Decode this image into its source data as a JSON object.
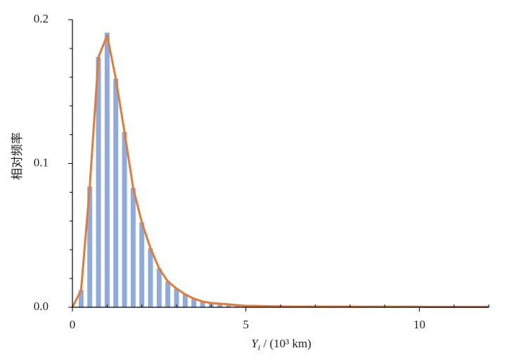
{
  "chart_data": {
    "type": "bar-line",
    "x_label": {
      "var": "Y",
      "sub": "i",
      "rest": " / (10³ km)"
    },
    "y_label": "相对频率",
    "x": [
      0,
      0.25,
      0.5,
      0.75,
      1,
      1.25,
      1.5,
      1.75,
      2,
      2.25,
      2.5,
      2.75,
      3,
      3.25,
      3.5,
      3.75,
      4,
      4.25,
      4.5,
      4.75,
      5,
      5.25,
      5.5,
      5.75,
      6,
      6.25,
      6.5,
      6.75,
      7,
      7.25,
      7.5,
      7.75,
      8,
      8.25,
      8.5,
      8.75,
      9,
      9.25,
      9.5,
      9.75,
      10,
      10.25,
      10.5,
      10.75,
      11,
      11.25,
      11.5,
      11.75,
      12
    ],
    "series": [
      {
        "type": "bar",
        "color": "#8faadc",
        "values": [
          null,
          0.012,
          0.084,
          0.174,
          0.191,
          0.159,
          0.122,
          0.083,
          0.059,
          0.041,
          0.027,
          0.018,
          0.013,
          0.009,
          0.006,
          0.004,
          0.003,
          0.0025,
          0.002,
          0.0015,
          0.001,
          0.001,
          0.0008,
          0.0007,
          0.0006,
          0.0005,
          0.0005,
          0.0005,
          0.0005,
          0.0005,
          0.0005,
          0.0005,
          0.0005,
          0.0004,
          0.0004,
          0.0004,
          0.0004,
          0.0004,
          0.0004,
          0.0004,
          0.0004,
          0.0003,
          0.0003,
          0.0003,
          0.0003,
          0.0003,
          0.0003,
          0.0003,
          0.0003
        ]
      },
      {
        "type": "line",
        "color": "#e07b39",
        "values": [
          0,
          0.012,
          0.084,
          0.174,
          0.189,
          0.159,
          0.122,
          0.083,
          0.059,
          0.041,
          0.027,
          0.018,
          0.013,
          0.009,
          0.006,
          0.004,
          0.003,
          0.0025,
          0.002,
          0.0015,
          0.001,
          0.001,
          0.0008,
          0.0007,
          0.0006,
          0.0005,
          0.0005,
          0.0005,
          0.0005,
          0.0005,
          0.0005,
          0.0005,
          0.0005,
          0.0004,
          0.0004,
          0.0004,
          0.0004,
          0.0004,
          0.0004,
          0.0004,
          0.0004,
          0.0003,
          0.0003,
          0.0003,
          0.0003,
          0.0003,
          0.0003,
          0.0003,
          0.0003
        ]
      }
    ],
    "xlim": [
      0,
      12
    ],
    "xticks": [
      0,
      5,
      10
    ],
    "xminor_ticks": [
      1,
      2,
      3,
      4,
      6,
      7,
      8,
      9,
      11,
      12
    ],
    "ylim": [
      0,
      0.2
    ],
    "yticks": [
      {
        "value": 0,
        "label": "0.0"
      },
      0.1,
      0.2
    ],
    "yminor_ticks": [
      0.02,
      0.04,
      0.06,
      0.08,
      0.12,
      0.14,
      0.16,
      0.18
    ]
  }
}
